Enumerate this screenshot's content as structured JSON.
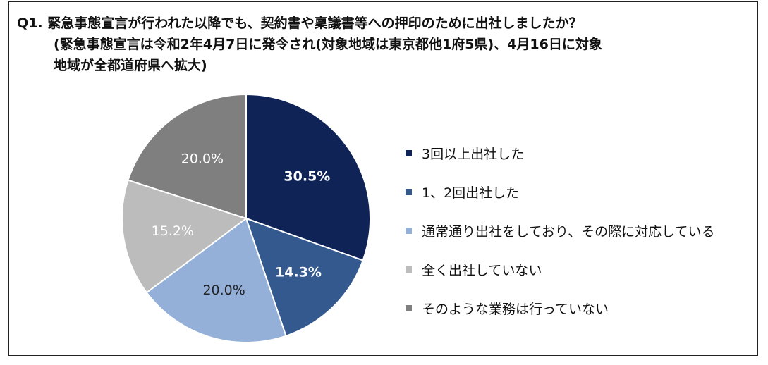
{
  "title": {
    "line1": "Q1. 緊急事態宣言が行われた以降でも、契約書や稟議書等への押印のために出社しましたか？",
    "line2": "(緊急事態宣言は令和2年4月7日に発令され(対象地域は東京都他1府5県)、4月16日に対象",
    "line3": "地域が全都道府県へ拡大)"
  },
  "chart_data": {
    "type": "pie",
    "title": "Q1. 緊急事態宣言が行われた以降でも、契約書や稟議書等への押印のために出社しましたか？ (緊急事態宣言は令和2年4月7日に発令され(対象地域は東京都他1府5県)、4月16日に対象地域が全都道府県へ拡大)",
    "categories": [
      "3回以上出社した",
      "1、2回出社した",
      "通常通り出社をしており、その際に対応している",
      "全く出社していない",
      "そのような業務は行っていない"
    ],
    "values": [
      30.5,
      14.3,
      20.0,
      15.2,
      20.0
    ],
    "data_labels": [
      "30.5%",
      "14.3%",
      "20.0%",
      "15.2%",
      "20.0%"
    ],
    "colors": [
      "#0f2357",
      "#34598f",
      "#94b0d8",
      "#bcbcbc",
      "#7f7f7f"
    ],
    "label_colors": [
      "#ffffff",
      "#ffffff",
      "#222222",
      "#ffffff",
      "#ffffff"
    ],
    "label_bold": [
      true,
      true,
      false,
      false,
      false
    ],
    "start_angle": "top (12 o'clock)",
    "direction": "clockwise",
    "legend_placement": "right"
  }
}
